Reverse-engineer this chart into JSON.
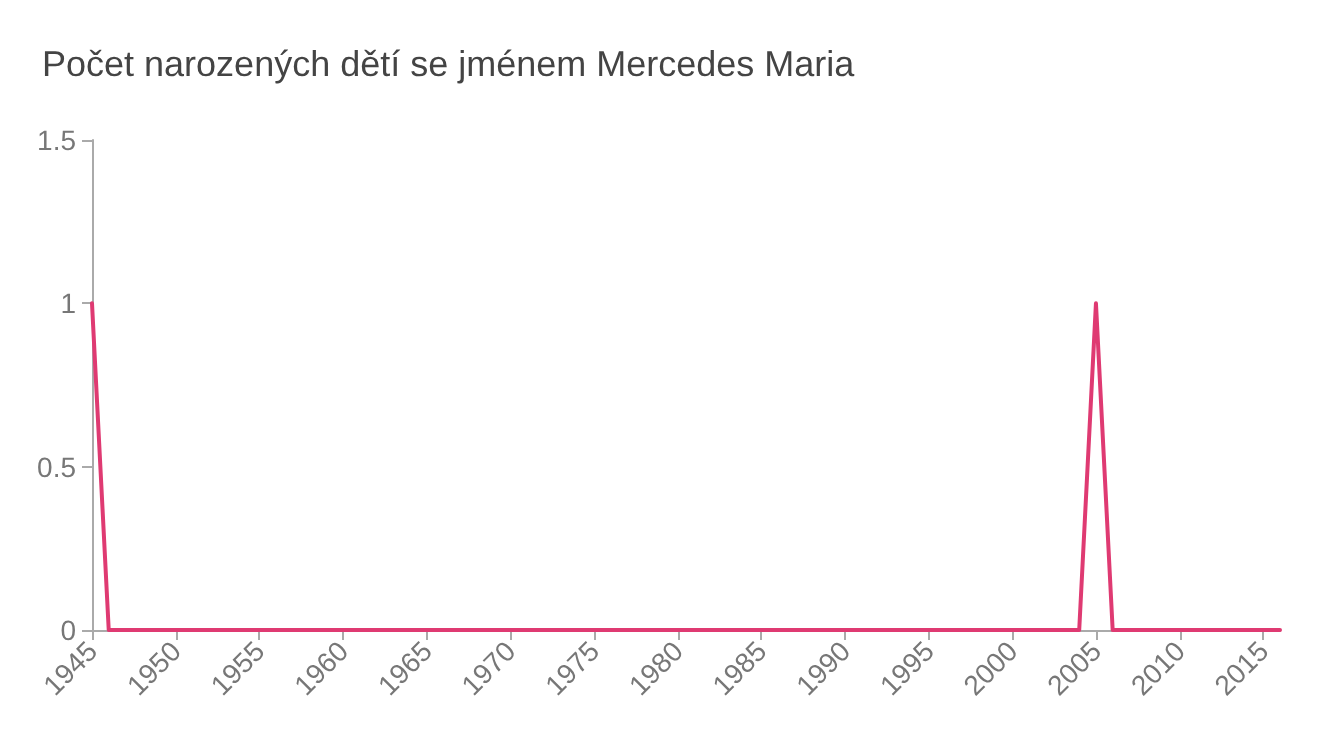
{
  "chart_data": {
    "type": "line",
    "title": "Počet narozených dětí se jménem Mercedes Maria",
    "x": [
      1945,
      1946,
      2004,
      2005,
      2006,
      2016
    ],
    "series": [
      {
        "color": "#df3a72",
        "values": [
          1,
          0,
          0,
          1,
          0,
          0
        ]
      }
    ],
    "xlim": [
      1945,
      2016
    ],
    "xticks": [
      1945,
      1950,
      1955,
      1960,
      1965,
      1970,
      1975,
      1980,
      1985,
      1990,
      1995,
      2000,
      2005,
      2010,
      2015
    ],
    "ylim": [
      0,
      1.5
    ],
    "yticks": [
      0,
      0.5,
      1,
      1.5
    ],
    "grid": false,
    "marker": "none",
    "line_style": "solid"
  }
}
